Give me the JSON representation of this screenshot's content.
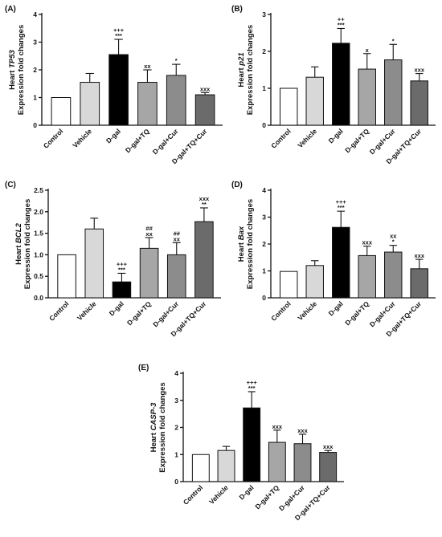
{
  "colors": {
    "Control": "#ffffff",
    "Vehicle": "#d8d8d8",
    "D-gal": "#000000",
    "D-gal+TQ": "#a6a6a6",
    "D-gal+Cur": "#8c8c8c",
    "D-gal+TQ+Cur": "#6b6b6b"
  },
  "chart_data": [
    {
      "type": "bar",
      "panel": "(A)",
      "ylabel": "Heart TP53",
      "ylabel_italic": "TP53",
      "ylabel2": "Expression fold changes",
      "ylim": [
        0,
        4
      ],
      "yticks": [
        0,
        1,
        2,
        3,
        4
      ],
      "categories": [
        "Control",
        "Vehicle",
        "D-gal",
        "D-gal+TQ",
        "D-gal+Cur",
        "D-gal+TQ+Cur"
      ],
      "values": [
        1.0,
        1.55,
        2.55,
        1.55,
        1.8,
        1.1
      ],
      "errors": [
        0,
        0.32,
        0.55,
        0.45,
        0.4,
        0.08
      ],
      "annotations": [
        [],
        [],
        [
          "+++",
          "***"
        ],
        [
          "xx"
        ],
        [
          "*"
        ],
        [
          "xxx"
        ]
      ]
    },
    {
      "type": "bar",
      "panel": "(B)",
      "ylabel": "Heart p21",
      "ylabel_italic": "p21",
      "ylabel2": "Expression fold changes",
      "ylim": [
        0,
        3
      ],
      "yticks": [
        0,
        1,
        2,
        3
      ],
      "categories": [
        "Control",
        "Vehicle",
        "D-gal",
        "D-gal+TQ",
        "D-gal+Cur",
        "D-gal+TQ+Cur"
      ],
      "values": [
        1.0,
        1.3,
        2.22,
        1.52,
        1.77,
        1.2
      ],
      "errors": [
        0,
        0.28,
        0.4,
        0.42,
        0.42,
        0.2
      ],
      "annotations": [
        [],
        [],
        [
          "++",
          "***"
        ],
        [
          "x"
        ],
        [
          "*"
        ],
        [
          "xxx"
        ]
      ]
    },
    {
      "type": "bar",
      "panel": "(C)",
      "ylabel": "Heart BCL2",
      "ylabel_italic": "BCL2",
      "ylabel2": "Expression fold changes",
      "ylim": [
        0,
        2.5
      ],
      "yticks": [
        0,
        0.5,
        1,
        1.5,
        2,
        2.5
      ],
      "ytick_labels": [
        "0.0",
        "0.5",
        "1.0",
        "1.5",
        "2.0",
        "2.5"
      ],
      "categories": [
        "Control",
        "Vehicle",
        "D-gal",
        "D-gal+TQ",
        "D-gal+Cur",
        "D-gal+TQ+Cur"
      ],
      "values": [
        1.0,
        1.6,
        0.37,
        1.15,
        1.0,
        1.77
      ],
      "errors": [
        0,
        0.25,
        0.2,
        0.25,
        0.28,
        0.32
      ],
      "annotations": [
        [],
        [],
        [
          "+++",
          "***"
        ],
        [
          "##",
          "xx"
        ],
        [
          "##",
          "xx"
        ],
        [
          "xxx",
          "**"
        ]
      ]
    },
    {
      "type": "bar",
      "panel": "(D)",
      "ylabel": "Heart Bax",
      "ylabel_italic": "Bax",
      "ylabel2": "Expression fold changes",
      "ylim": [
        0,
        4
      ],
      "yticks": [
        0,
        1,
        2,
        3,
        4
      ],
      "categories": [
        "Control",
        "Vehicle",
        "D-gal",
        "D-gal+TQ",
        "D-gal+Cur",
        "D-gal+TQ+Cur"
      ],
      "values": [
        0.98,
        1.2,
        2.62,
        1.57,
        1.7,
        1.08
      ],
      "errors": [
        0,
        0.18,
        0.6,
        0.35,
        0.25,
        0.35
      ],
      "annotations": [
        [],
        [],
        [
          "+++",
          "***"
        ],
        [
          "xxx"
        ],
        [
          "xx",
          "*"
        ],
        [
          "xxx"
        ]
      ]
    },
    {
      "type": "bar",
      "panel": "(E)",
      "ylabel": "Heart CASP-3",
      "ylabel_italic": "CASP-3",
      "ylabel2": "Expression fold changes",
      "ylim": [
        0,
        4
      ],
      "yticks": [
        0,
        1,
        2,
        3,
        4
      ],
      "categories": [
        "Control",
        "Vehicle",
        "D-gal",
        "D-gal+TQ",
        "D-gal+Cur",
        "D-gal+TQ+Cur"
      ],
      "values": [
        1.0,
        1.15,
        2.72,
        1.45,
        1.4,
        1.08
      ],
      "errors": [
        0,
        0.15,
        0.6,
        0.45,
        0.35,
        0.07
      ],
      "annotations": [
        [],
        [],
        [
          "+++",
          "***"
        ],
        [
          "xxx"
        ],
        [
          "xxx"
        ],
        [
          "xxx"
        ]
      ]
    }
  ]
}
